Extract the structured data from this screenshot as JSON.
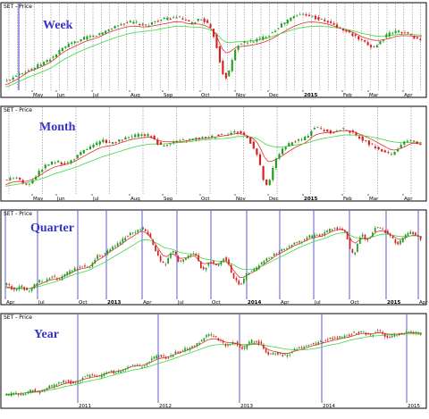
{
  "panels": [
    {
      "title": "SET - Price",
      "label": "Week",
      "x_ticks": [
        "May",
        "Jun",
        "Jul",
        "Aug",
        "Sep",
        "Oct",
        "Nov",
        "Dec",
        "2015",
        "Feb",
        "Mar",
        "Apr"
      ],
      "bold_ticks": [
        "2015"
      ]
    },
    {
      "title": "SET - Price",
      "label": "Month",
      "x_ticks": [
        "May",
        "Jun",
        "Jul",
        "Aug",
        "Sep",
        "Oct",
        "Nov",
        "Dec",
        "2015",
        "Feb",
        "Mar",
        "Apr"
      ],
      "bold_ticks": [
        "2015"
      ]
    },
    {
      "title": "SET - Price",
      "label": "Quarter",
      "x_ticks": [
        "Apr",
        "Jul",
        "Oct",
        "2013",
        "Apr",
        "Jul",
        "Oct",
        "2014",
        "Apr",
        "Jul",
        "Oct",
        "2015",
        "Apr"
      ],
      "bold_ticks": [
        "2013",
        "2014",
        "2015"
      ]
    },
    {
      "title": "SET - Price",
      "label": "Year",
      "x_ticks": [
        "2011",
        "2012",
        "2013",
        "2014",
        "2015"
      ],
      "bold_ticks": []
    }
  ],
  "colors": {
    "up_candle": "#1f9e1f",
    "down_candle": "#d91f1f",
    "fast_ma": "#e03030",
    "slow_ma": "#3fd63f",
    "week_grid": "#808080",
    "period_line": "#3333cc",
    "label": "#3333cc",
    "frame": "#000000"
  },
  "chart_data": [
    {
      "type": "candlestick",
      "title": "SET - Price",
      "annotation": "Week",
      "x_ticks": [
        "May",
        "Jun",
        "Jul",
        "Aug",
        "Sep",
        "Oct",
        "Nov",
        "Dec",
        "2015",
        "Feb",
        "Mar",
        "Apr"
      ],
      "grid": "weekly dotted vertical lines",
      "series": [
        {
          "values": [
            0.1,
            0.2,
            0.25,
            0.33,
            0.42,
            0.55,
            0.62,
            0.68,
            0.72,
            0.8,
            0.86,
            0.88,
            0.84,
            0.9,
            0.93,
            0.94,
            0.87,
            0.92,
            0.7,
            0.15,
            0.55,
            0.62,
            0.66,
            0.74,
            0.86,
            0.96,
            0.99,
            0.93,
            0.88,
            0.8,
            0.72,
            0.62,
            0.56,
            0.7,
            0.76,
            0.72,
            0.65
          ]
        },
        {
          "values": [
            0.05,
            0.12,
            0.22,
            0.28,
            0.36,
            0.48,
            0.56,
            0.63,
            0.68,
            0.75,
            0.8,
            0.83,
            0.82,
            0.84,
            0.87,
            0.89,
            0.86,
            0.85,
            0.76,
            0.48,
            0.55,
            0.57,
            0.6,
            0.66,
            0.75,
            0.83,
            0.88,
            0.88,
            0.85,
            0.8,
            0.75,
            0.68,
            0.64,
            0.66,
            0.7,
            0.7,
            0.69
          ]
        },
        {
          "values": [
            0.02,
            0.08,
            0.15,
            0.21,
            0.28,
            0.38,
            0.46,
            0.53,
            0.59,
            0.65,
            0.7,
            0.74,
            0.76,
            0.78,
            0.81,
            0.83,
            0.82,
            0.81,
            0.76,
            0.62,
            0.62,
            0.63,
            0.65,
            0.69,
            0.74,
            0.79,
            0.82,
            0.83,
            0.82,
            0.8,
            0.77,
            0.73,
            0.7,
            0.7,
            0.72,
            0.72,
            0.71
          ]
        }
      ]
    },
    {
      "type": "candlestick",
      "title": "SET - Price",
      "annotation": "Month",
      "x_ticks": [
        "May",
        "Jun",
        "Jul",
        "Aug",
        "Sep",
        "Oct",
        "Nov",
        "Dec",
        "2015",
        "Feb",
        "Mar",
        "Apr"
      ],
      "grid": "monthly dotted vertical lines",
      "series": [
        {
          "values": [
            0.15,
            0.2,
            0.1,
            0.22,
            0.35,
            0.4,
            0.38,
            0.45,
            0.55,
            0.62,
            0.68,
            0.65,
            0.7,
            0.74,
            0.76,
            0.74,
            0.62,
            0.66,
            0.68,
            0.7,
            0.72,
            0.73,
            0.76,
            0.78,
            0.8,
            0.72,
            0.5,
            0.08,
            0.45,
            0.6,
            0.68,
            0.72,
            0.86,
            0.82,
            0.8,
            0.84,
            0.78,
            0.7,
            0.62,
            0.55,
            0.5,
            0.62,
            0.7,
            0.62
          ]
        },
        {
          "values": [
            0.1,
            0.14,
            0.14,
            0.18,
            0.26,
            0.33,
            0.36,
            0.4,
            0.47,
            0.54,
            0.6,
            0.62,
            0.66,
            0.7,
            0.72,
            0.73,
            0.68,
            0.67,
            0.67,
            0.69,
            0.71,
            0.72,
            0.74,
            0.76,
            0.78,
            0.75,
            0.66,
            0.42,
            0.44,
            0.52,
            0.6,
            0.66,
            0.76,
            0.79,
            0.8,
            0.82,
            0.8,
            0.75,
            0.69,
            0.62,
            0.56,
            0.59,
            0.65,
            0.64
          ]
        },
        {
          "values": [
            0.08,
            0.1,
            0.12,
            0.15,
            0.19,
            0.24,
            0.28,
            0.32,
            0.37,
            0.42,
            0.47,
            0.51,
            0.55,
            0.59,
            0.62,
            0.64,
            0.64,
            0.65,
            0.66,
            0.67,
            0.69,
            0.7,
            0.71,
            0.72,
            0.74,
            0.74,
            0.71,
            0.63,
            0.6,
            0.61,
            0.63,
            0.65,
            0.69,
            0.72,
            0.74,
            0.76,
            0.76,
            0.75,
            0.73,
            0.7,
            0.67,
            0.66,
            0.66,
            0.66
          ]
        }
      ]
    },
    {
      "type": "candlestick",
      "title": "SET - Price",
      "annotation": "Quarter",
      "x_ticks": [
        "Apr",
        "Jul",
        "Oct",
        "2013",
        "Apr",
        "Jul",
        "Oct",
        "2014",
        "Apr",
        "Jul",
        "Oct",
        "2015",
        "Apr"
      ],
      "grid": "quarterly solid blue vertical lines",
      "series": [
        {
          "values": [
            0.15,
            0.08,
            0.12,
            0.05,
            0.18,
            0.2,
            0.25,
            0.22,
            0.3,
            0.35,
            0.4,
            0.38,
            0.52,
            0.55,
            0.65,
            0.7,
            0.8,
            0.85,
            0.9,
            0.78,
            0.55,
            0.42,
            0.6,
            0.45,
            0.52,
            0.55,
            0.35,
            0.45,
            0.4,
            0.5,
            0.28,
            0.15,
            0.3,
            0.35,
            0.45,
            0.52,
            0.58,
            0.62,
            0.7,
            0.72,
            0.78,
            0.8,
            0.82,
            0.88,
            0.9,
            0.84,
            0.55,
            0.8,
            0.75,
            0.9,
            0.88,
            0.78,
            0.7,
            0.8,
            0.84,
            0.76
          ]
        },
        {
          "values": [
            0.12,
            0.1,
            0.1,
            0.09,
            0.13,
            0.17,
            0.21,
            0.23,
            0.27,
            0.32,
            0.36,
            0.38,
            0.46,
            0.52,
            0.6,
            0.66,
            0.74,
            0.8,
            0.86,
            0.8,
            0.66,
            0.52,
            0.56,
            0.5,
            0.51,
            0.53,
            0.43,
            0.44,
            0.42,
            0.46,
            0.36,
            0.24,
            0.28,
            0.33,
            0.41,
            0.48,
            0.55,
            0.6,
            0.66,
            0.7,
            0.75,
            0.78,
            0.8,
            0.85,
            0.88,
            0.86,
            0.7,
            0.76,
            0.76,
            0.85,
            0.86,
            0.81,
            0.75,
            0.78,
            0.81,
            0.78
          ]
        },
        {
          "values": [
            0.1,
            0.1,
            0.1,
            0.09,
            0.11,
            0.14,
            0.17,
            0.2,
            0.24,
            0.28,
            0.31,
            0.34,
            0.39,
            0.44,
            0.5,
            0.56,
            0.62,
            0.68,
            0.74,
            0.74,
            0.7,
            0.64,
            0.62,
            0.58,
            0.56,
            0.55,
            0.5,
            0.48,
            0.46,
            0.46,
            0.42,
            0.36,
            0.35,
            0.36,
            0.4,
            0.45,
            0.5,
            0.55,
            0.6,
            0.65,
            0.69,
            0.73,
            0.76,
            0.8,
            0.83,
            0.84,
            0.78,
            0.77,
            0.77,
            0.8,
            0.82,
            0.81,
            0.79,
            0.79,
            0.8,
            0.79
          ]
        }
      ]
    },
    {
      "type": "candlestick",
      "title": "SET - Price",
      "annotation": "Year",
      "x_ticks": [
        "2011",
        "2012",
        "2013",
        "2014",
        "2015"
      ],
      "grid": "yearly solid blue vertical lines",
      "series": [
        {
          "values": [
            0.05,
            0.08,
            0.06,
            0.12,
            0.1,
            0.16,
            0.2,
            0.24,
            0.22,
            0.28,
            0.32,
            0.3,
            0.38,
            0.36,
            0.42,
            0.46,
            0.44,
            0.52,
            0.58,
            0.56,
            0.62,
            0.66,
            0.7,
            0.78,
            0.86,
            0.8,
            0.72,
            0.76,
            0.68,
            0.78,
            0.74,
            0.6,
            0.62,
            0.58,
            0.66,
            0.7,
            0.74,
            0.76,
            0.8,
            0.82,
            0.84,
            0.88,
            0.9,
            0.86,
            0.92,
            0.84,
            0.86,
            0.88,
            0.9,
            0.86
          ]
        },
        {
          "values": [
            0.06,
            0.07,
            0.08,
            0.1,
            0.11,
            0.14,
            0.17,
            0.21,
            0.23,
            0.26,
            0.29,
            0.31,
            0.35,
            0.37,
            0.4,
            0.44,
            0.45,
            0.49,
            0.54,
            0.56,
            0.6,
            0.64,
            0.68,
            0.74,
            0.8,
            0.8,
            0.76,
            0.75,
            0.71,
            0.74,
            0.73,
            0.66,
            0.63,
            0.61,
            0.64,
            0.67,
            0.71,
            0.74,
            0.77,
            0.8,
            0.82,
            0.85,
            0.88,
            0.87,
            0.89,
            0.87,
            0.87,
            0.88,
            0.89,
            0.88
          ]
        },
        {
          "values": [
            0.07,
            0.07,
            0.08,
            0.09,
            0.1,
            0.12,
            0.14,
            0.17,
            0.19,
            0.22,
            0.25,
            0.27,
            0.3,
            0.33,
            0.36,
            0.39,
            0.41,
            0.44,
            0.48,
            0.51,
            0.55,
            0.59,
            0.63,
            0.67,
            0.71,
            0.73,
            0.73,
            0.74,
            0.73,
            0.73,
            0.73,
            0.71,
            0.69,
            0.67,
            0.66,
            0.66,
            0.67,
            0.69,
            0.72,
            0.74,
            0.77,
            0.8,
            0.82,
            0.84,
            0.85,
            0.86,
            0.86,
            0.87,
            0.87,
            0.87
          ]
        }
      ]
    }
  ]
}
